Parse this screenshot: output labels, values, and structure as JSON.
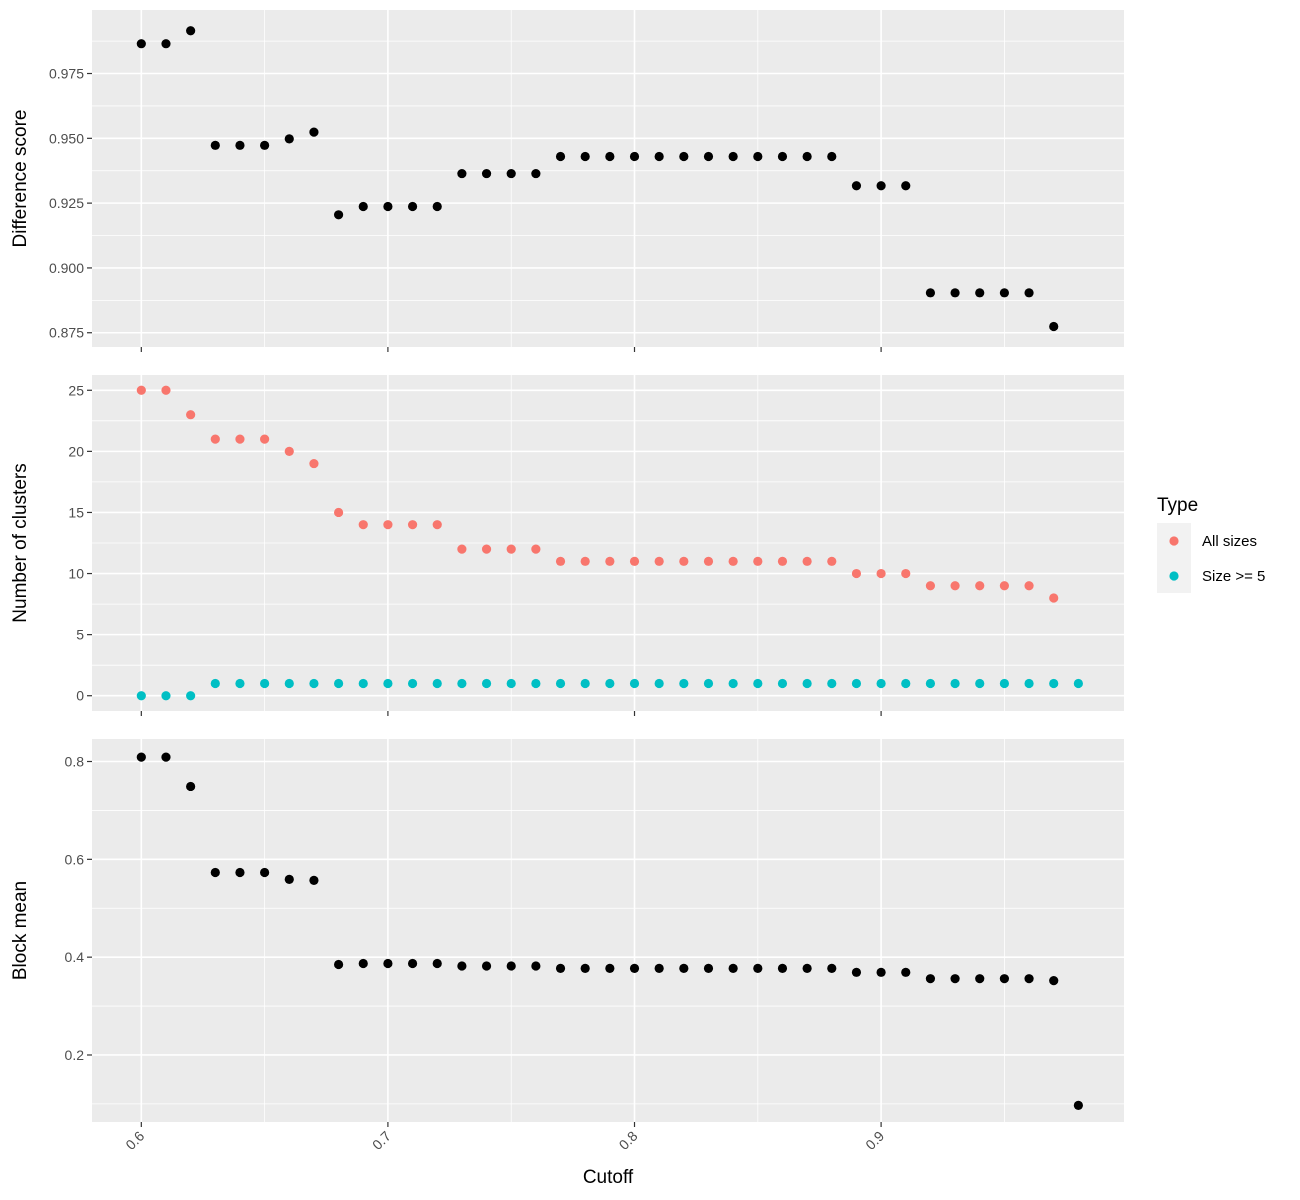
{
  "chart_data": {
    "type": "scatter",
    "layout": "faceted vertical stack, shared x axis",
    "xlabel": "Cutoff",
    "x_ticks": [
      0.6,
      0.7,
      0.8,
      0.9
    ],
    "x_tick_labels": [
      "0.6",
      "0.7",
      "0.8",
      "0.9"
    ],
    "xlim": [
      0.58,
      0.9985
    ],
    "grid": true,
    "panel_background": "#ebebeb",
    "grid_color": "#ffffff",
    "panels": [
      {
        "ylabel": "Difference score",
        "ylim": [
          0.8695,
          0.9995
        ],
        "y_ticks": [
          0.875,
          0.9,
          0.925,
          0.95,
          0.975
        ],
        "y_tick_labels": [
          "0.875",
          "0.900",
          "0.925",
          "0.950",
          "0.975"
        ],
        "series": [
          {
            "color": "#000000",
            "x": [
              0.6,
              0.61,
              0.62,
              0.63,
              0.64,
              0.65,
              0.66,
              0.67,
              0.68,
              0.69,
              0.7,
              0.71,
              0.72,
              0.73,
              0.74,
              0.75,
              0.76,
              0.77,
              0.78,
              0.79,
              0.8,
              0.81,
              0.82,
              0.83,
              0.84,
              0.85,
              0.86,
              0.87,
              0.88,
              0.89,
              0.9,
              0.91,
              0.92,
              0.93,
              0.94,
              0.95,
              0.96,
              0.97
            ],
            "y": [
              0.9865,
              0.9865,
              0.9915,
              0.9473,
              0.9473,
              0.9473,
              0.9498,
              0.9524,
              0.9205,
              0.9237,
              0.9237,
              0.9237,
              0.9237,
              0.9364,
              0.9364,
              0.9364,
              0.9364,
              0.943,
              0.943,
              0.943,
              0.943,
              0.943,
              0.943,
              0.943,
              0.943,
              0.943,
              0.943,
              0.943,
              0.943,
              0.9317,
              0.9317,
              0.9317,
              0.8904,
              0.8904,
              0.8904,
              0.8904,
              0.8904,
              0.8774
            ]
          }
        ]
      },
      {
        "ylabel": "Number of clusters",
        "ylim": [
          -1.25,
          26.25
        ],
        "y_ticks": [
          0,
          5,
          10,
          15,
          20,
          25
        ],
        "y_tick_labels": [
          "0",
          "5",
          "10",
          "15",
          "20",
          "25"
        ],
        "series": [
          {
            "name": "All sizes",
            "color": "#f8766d",
            "x": [
              0.6,
              0.61,
              0.62,
              0.63,
              0.64,
              0.65,
              0.66,
              0.67,
              0.68,
              0.69,
              0.7,
              0.71,
              0.72,
              0.73,
              0.74,
              0.75,
              0.76,
              0.77,
              0.78,
              0.79,
              0.8,
              0.81,
              0.82,
              0.83,
              0.84,
              0.85,
              0.86,
              0.87,
              0.88,
              0.89,
              0.9,
              0.91,
              0.92,
              0.93,
              0.94,
              0.95,
              0.96,
              0.97
            ],
            "y": [
              25,
              25,
              23,
              21,
              21,
              21,
              20,
              19,
              15,
              14,
              14,
              14,
              14,
              12,
              12,
              12,
              12,
              11,
              11,
              11,
              11,
              11,
              11,
              11,
              11,
              11,
              11,
              11,
              11,
              10,
              10,
              10,
              9,
              9,
              9,
              9,
              9,
              8
            ]
          },
          {
            "name": "Size >= 5",
            "color": "#00bfc4",
            "x": [
              0.6,
              0.61,
              0.62,
              0.63,
              0.64,
              0.65,
              0.66,
              0.67,
              0.68,
              0.69,
              0.7,
              0.71,
              0.72,
              0.73,
              0.74,
              0.75,
              0.76,
              0.77,
              0.78,
              0.79,
              0.8,
              0.81,
              0.82,
              0.83,
              0.84,
              0.85,
              0.86,
              0.87,
              0.88,
              0.89,
              0.9,
              0.91,
              0.92,
              0.93,
              0.94,
              0.95,
              0.96,
              0.97,
              0.98
            ],
            "y": [
              0,
              0,
              0,
              1,
              1,
              1,
              1,
              1,
              1,
              1,
              1,
              1,
              1,
              1,
              1,
              1,
              1,
              1,
              1,
              1,
              1,
              1,
              1,
              1,
              1,
              1,
              1,
              1,
              1,
              1,
              1,
              1,
              1,
              1,
              1,
              1,
              1,
              1,
              1
            ]
          }
        ]
      },
      {
        "ylabel": "Block mean",
        "ylim": [
          0.063,
          0.846
        ],
        "y_ticks": [
          0.2,
          0.4,
          0.6,
          0.8
        ],
        "y_tick_labels": [
          "0.2",
          "0.4",
          "0.6",
          "0.8"
        ],
        "series": [
          {
            "color": "#000000",
            "x": [
              0.6,
              0.61,
              0.62,
              0.63,
              0.64,
              0.65,
              0.66,
              0.67,
              0.68,
              0.69,
              0.7,
              0.71,
              0.72,
              0.73,
              0.74,
              0.75,
              0.76,
              0.77,
              0.78,
              0.79,
              0.8,
              0.81,
              0.82,
              0.83,
              0.84,
              0.85,
              0.86,
              0.87,
              0.88,
              0.89,
              0.9,
              0.91,
              0.92,
              0.93,
              0.94,
              0.95,
              0.96,
              0.97,
              0.98
            ],
            "y": [
              0.809,
              0.809,
              0.749,
              0.573,
              0.573,
              0.573,
              0.559,
              0.557,
              0.385,
              0.387,
              0.387,
              0.387,
              0.387,
              0.382,
              0.382,
              0.382,
              0.382,
              0.377,
              0.377,
              0.377,
              0.377,
              0.377,
              0.377,
              0.377,
              0.377,
              0.377,
              0.377,
              0.377,
              0.377,
              0.369,
              0.369,
              0.369,
              0.356,
              0.356,
              0.356,
              0.356,
              0.356,
              0.352,
              0.097
            ]
          }
        ]
      }
    ],
    "legend": {
      "title": "Type",
      "placement": "right",
      "background": "#f2f2f2",
      "items": [
        {
          "label": "All sizes",
          "color": "#f8766d"
        },
        {
          "label": "Size >= 5",
          "color": "#00bfc4"
        }
      ]
    }
  }
}
